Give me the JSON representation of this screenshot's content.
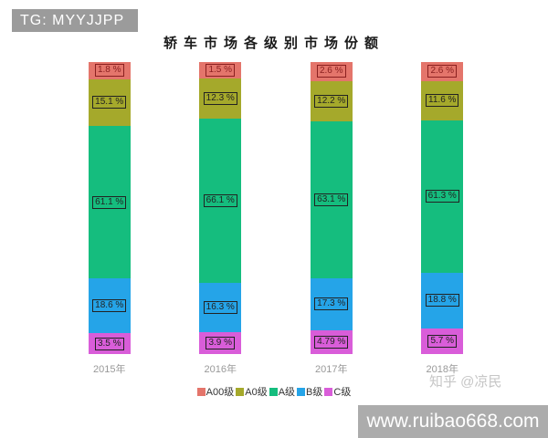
{
  "badge": {
    "text": "TG: MYYJJPP"
  },
  "chart_data": {
    "type": "bar",
    "variant": "stacked-column",
    "title": "轿车市场各级别市场份额",
    "categories": [
      "2015年",
      "2016年",
      "2017年",
      "2018年"
    ],
    "series": [
      {
        "name": "A00级",
        "color": "#E4756B",
        "label_color": "#8B2020",
        "values": [
          1.8,
          1.5,
          2.6,
          2.6
        ]
      },
      {
        "name": "A0级",
        "color": "#A5A92B",
        "label_color": "#222222",
        "values": [
          15.1,
          12.3,
          12.2,
          11.6
        ]
      },
      {
        "name": "A级",
        "color": "#15BD7E",
        "label_color": "#222222",
        "values": [
          61.1,
          66.1,
          63.1,
          61.3
        ]
      },
      {
        "name": "B级",
        "color": "#25A4E8",
        "label_color": "#222222",
        "values": [
          18.6,
          16.3,
          17.3,
          18.8
        ]
      },
      {
        "name": "C级",
        "color": "#D95DD9",
        "label_color": "#222222",
        "values": [
          3.5,
          3.9,
          4.79,
          5.7
        ]
      }
    ],
    "value_suffix": " %",
    "legend": [
      "A00级",
      "A0级",
      "A级",
      "B级",
      "C级"
    ],
    "legend_position": "bottom",
    "ylim": [
      0,
      100
    ],
    "grid": false
  },
  "watermarks": {
    "zhihu": "知乎 @凉民",
    "site": "www.ruibao668.com"
  }
}
